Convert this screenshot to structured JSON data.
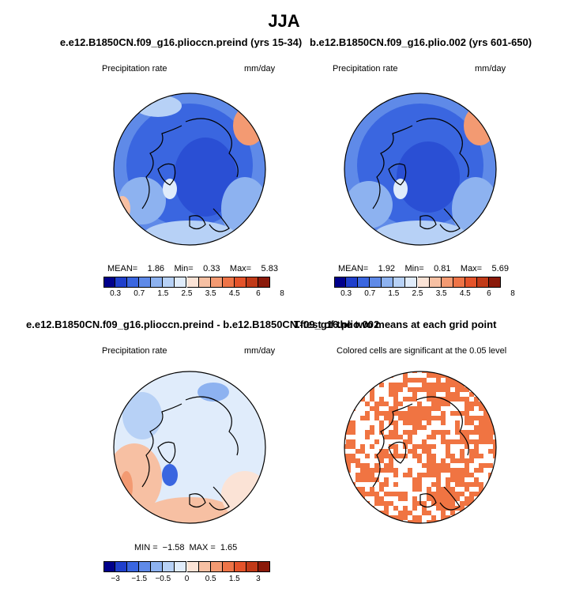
{
  "title": "JJA",
  "panels": [
    {
      "title": "e.e12.B1850CN.f09_g16.plioccn.preind (yrs 15-34)",
      "left_label": "Precipitation rate",
      "right_label": "mm/day",
      "stats": {
        "mean_label": "MEAN=",
        "mean": "1.86",
        "min_label": "Min=",
        "min": "0.33",
        "max_label": "Max=",
        "max": "5.83"
      },
      "colorbar_ticks": [
        "0.3",
        "0.7",
        "1.5",
        "2.5",
        "3.5",
        "4.5",
        "6",
        "8"
      ],
      "map_fill": "blue-dominant precipitation field"
    },
    {
      "title": "b.e12.B1850CN.f09_g16.plio.002 (yrs 601-650)",
      "left_label": "Precipitation rate",
      "right_label": "mm/day",
      "stats": {
        "mean_label": "MEAN=",
        "mean": "1.92",
        "min_label": "Min=",
        "min": "0.81",
        "max_label": "Max=",
        "max": "5.69"
      },
      "colorbar_ticks": [
        "0.3",
        "0.7",
        "1.5",
        "2.5",
        "3.5",
        "4.5",
        "6",
        "8"
      ],
      "map_fill": "blue-dominant precipitation field"
    },
    {
      "title": "e.e12.B1850CN.f09_g16.plioccn.preind - b.e12.B1850CN.f09_g16.plio.002",
      "left_label": "Precipitation rate",
      "right_label": "mm/day",
      "stats": {
        "min_label": "MIN =",
        "min": "−1.58",
        "max_label": "MAX =",
        "max": "1.65"
      },
      "colorbar_ticks": [
        "−3",
        "−1.5",
        "−0.5",
        "0",
        "0.5",
        "1.5",
        "3"
      ],
      "map_fill": "difference field, light blue and orange"
    },
    {
      "title": "T-test of the two means at each grid point",
      "left_label": "Colored cells are significant at the 0.05 level",
      "map_fill": "orange significance mask"
    }
  ],
  "palettes": {
    "precip": [
      "#00008b",
      "#1f3fcc",
      "#3a66e0",
      "#5f8ae8",
      "#8db2f0",
      "#b7d1f6",
      "#e0ecfb",
      "#fbe3d6",
      "#f7c0a3",
      "#f39a72",
      "#ee7447",
      "#e4532a",
      "#c13a18",
      "#8b1a0a"
    ],
    "diff": [
      "#00008b",
      "#1f3fcc",
      "#3a66e0",
      "#5f8ae8",
      "#8db2f0",
      "#b7d1f6",
      "#e0ecfb",
      "#fbe3d6",
      "#f7c0a3",
      "#f39a72",
      "#ee7447",
      "#e4532a",
      "#c13a18",
      "#8b1a0a"
    ],
    "ttest": "#f07442"
  }
}
